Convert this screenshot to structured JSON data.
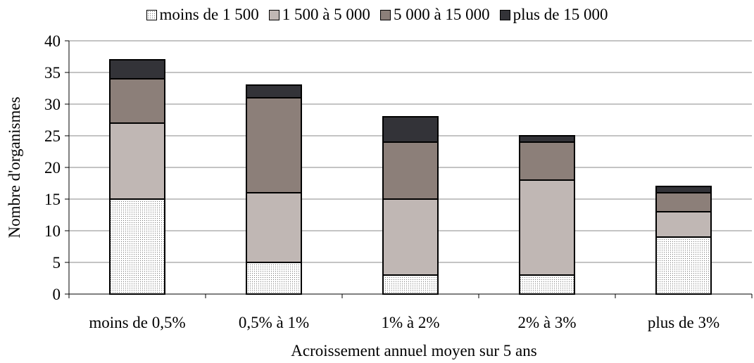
{
  "chart_data": {
    "type": "bar",
    "stacked": true,
    "categories": [
      "moins de 0,5%",
      "0,5% à 1%",
      "1% à 2%",
      "2% à 3%",
      "plus de 3%"
    ],
    "series": [
      {
        "name": "moins de 1 500",
        "values": [
          15,
          5,
          3,
          3,
          9
        ],
        "color": "#ffffff",
        "pattern": "dots"
      },
      {
        "name": "1 500 à 5 000",
        "values": [
          12,
          11,
          12,
          15,
          4
        ],
        "color": "#c0b7b4"
      },
      {
        "name": "5 000 à 15 000",
        "values": [
          7,
          15,
          9,
          6,
          3
        ],
        "color": "#8c7f79"
      },
      {
        "name": "plus de 15 000",
        "values": [
          3,
          2,
          4,
          1,
          1
        ],
        "color": "#333338"
      }
    ],
    "xlabel": "Acroissement annuel moyen sur 5 ans",
    "ylabel": "Nombre d'organismes",
    "ylim": [
      0,
      40
    ],
    "yticks": [
      0,
      5,
      10,
      15,
      20,
      25,
      30,
      35,
      40
    ],
    "grid": true,
    "legend": "top"
  }
}
